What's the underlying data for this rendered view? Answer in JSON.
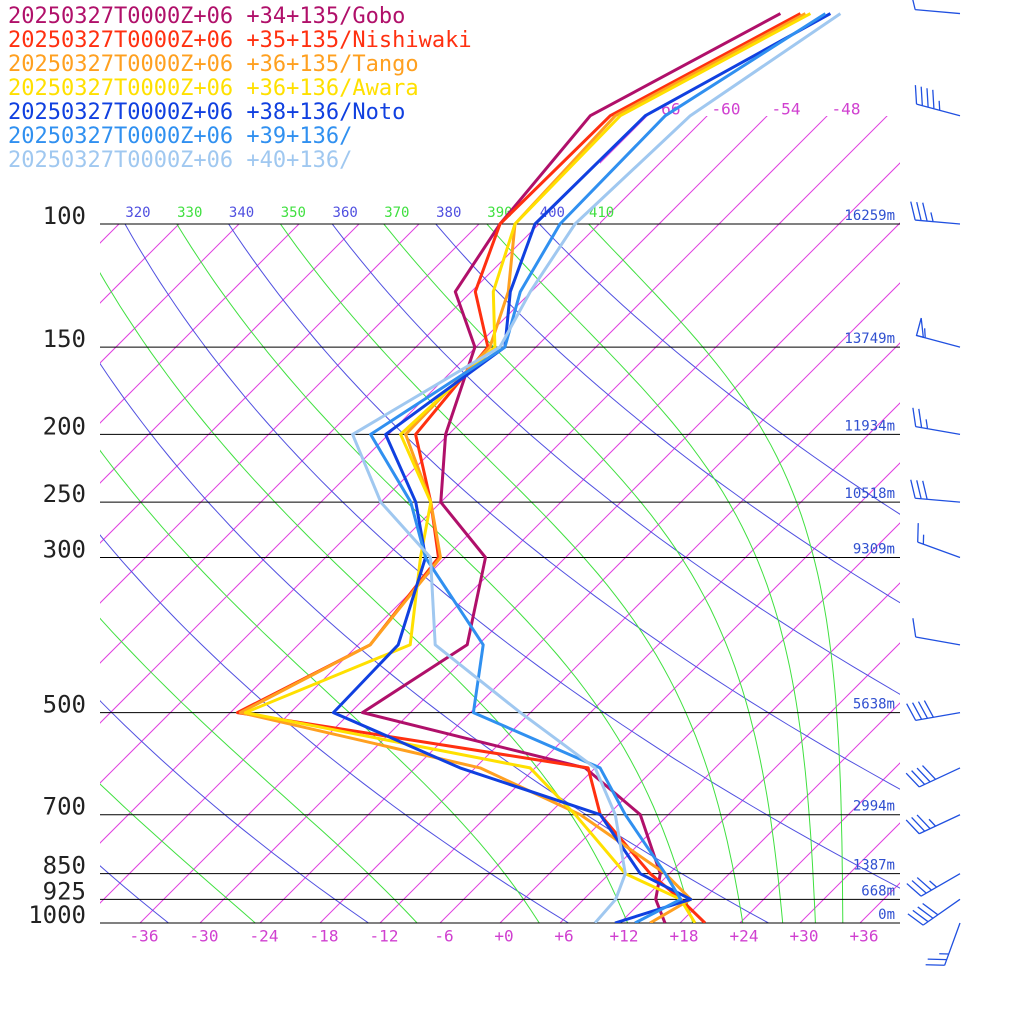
{
  "chart_data": {
    "type": "skewt",
    "pressures": [
      1000,
      925,
      850,
      700,
      600,
      500,
      400,
      300,
      250,
      200,
      150,
      125,
      100,
      70,
      50
    ],
    "series": [
      {
        "name": "20250327T0000Z+06 +34+135/Gobo",
        "color": "#b0106a",
        "values": [
          16.5,
          13.2,
          11.1,
          3.2,
          -7,
          -34.8,
          -31.1,
          -38,
          -48,
          -54.3,
          -60.1,
          -67.6,
          -69.9,
          -71.7,
          -62.9
        ]
      },
      {
        "name": "20250327T0000Z+06 +35+135/Nishiwaki",
        "color": "#ff3010",
        "values": [
          20.5,
          15.7,
          10.1,
          -0.8,
          -6.7,
          -47.3,
          -40.8,
          -42.7,
          -49,
          -57.3,
          -58.8,
          -65.6,
          -69.9,
          -69.7,
          -60.9
        ]
      },
      {
        "name": "20250327T0000Z+06 +36+135/Tango",
        "color": "#ffa020",
        "values": [
          15,
          16.7,
          11.6,
          -2.8,
          -17.5,
          -47,
          -40.8,
          -42.5,
          -49,
          -58.3,
          -58.6,
          -62.3,
          -68.4,
          -69.2,
          -60.4
        ]
      },
      {
        "name": "20250327T0000Z+06 +36+136/Awara",
        "color": "#ffe000",
        "values": [
          19.5,
          15.7,
          7.6,
          -3.3,
          -12.5,
          -46.5,
          -36.8,
          -44.5,
          -49,
          -58.8,
          -58.1,
          -63.8,
          -68.4,
          -68.7,
          -59.9
        ]
      },
      {
        "name": "20250327T0000Z+06 +38+136/Noto",
        "color": "#1040e0",
        "values": [
          11.5,
          16.7,
          9.1,
          -0.8,
          -19.5,
          -37.7,
          -38,
          -44,
          -50.5,
          -60.3,
          -57.1,
          -62.1,
          -66.4,
          -66.2,
          -57.9
        ]
      },
      {
        "name": "20250327T0000Z+06 +39+136/",
        "color": "#3090f0",
        "values": [
          13.5,
          15.7,
          11.6,
          1.7,
          -5.5,
          -23.7,
          -29.5,
          -44,
          -51,
          -61.8,
          -57.1,
          -61.1,
          -63.9,
          -64.2,
          -58.4
        ]
      },
      {
        "name": "20250327T0000Z+06 +40+136/",
        "color": "#a0c8f0",
        "values": [
          9.5,
          9.2,
          7.6,
          0.7,
          -6,
          -19,
          -34.3,
          -43.5,
          -54,
          -63.6,
          -57.6,
          -60.1,
          -62.4,
          -61.7,
          -56.9
        ]
      }
    ],
    "yticks": [
      100,
      150,
      200,
      250,
      300,
      500,
      700,
      850,
      925,
      1000
    ],
    "height_labels": [
      "16259m",
      "13749m",
      "11934m",
      "10518m",
      "9309m",
      "5638m",
      "2994m",
      "1387m",
      "668m",
      "0m"
    ],
    "xticks": [
      -36,
      -30,
      -24,
      -18,
      -12,
      -6,
      {
        "value": 0,
        "label": "+0"
      },
      {
        "value": 6,
        "label": "+6"
      },
      {
        "value": 12,
        "label": "+12"
      },
      {
        "value": 18,
        "label": "+18"
      },
      {
        "value": 24,
        "label": "+24"
      },
      {
        "value": 30,
        "label": "+30"
      },
      {
        "value": 36,
        "label": "+36"
      }
    ],
    "upper_isotherm_labels": [
      -66,
      -60,
      -54,
      -48
    ],
    "isotherms": [
      -120,
      -114,
      -108,
      -102,
      -96,
      -90,
      -84,
      -78,
      -72,
      -66,
      -60,
      -54,
      -48,
      -42,
      -36,
      -30,
      -24,
      -18,
      -12,
      -6,
      0,
      6,
      12,
      18,
      24,
      30,
      36
    ],
    "isotherm_color": "#e040e0",
    "dry_adiabats": [
      240,
      260,
      280,
      300,
      320,
      340,
      360,
      380,
      400
    ],
    "dry_adiabat_color": "#5050e0",
    "moist_adiabats": [
      250,
      270,
      290,
      310,
      330,
      350,
      370,
      390,
      410
    ],
    "moist_adiabat_color": "#40e040",
    "winds": {
      "color": "#2050e0",
      "pressures": [
        50,
        70,
        100,
        150,
        200,
        250,
        300,
        400,
        500,
        600,
        700,
        850,
        925,
        1000
      ],
      "directions": [
        275,
        285,
        275,
        285,
        280,
        275,
        290,
        280,
        260,
        245,
        245,
        240,
        235,
        200
      ],
      "speeds": [
        10,
        45,
        35,
        55,
        25,
        30,
        15,
        10,
        40,
        40,
        35,
        35,
        40,
        25
      ]
    }
  }
}
